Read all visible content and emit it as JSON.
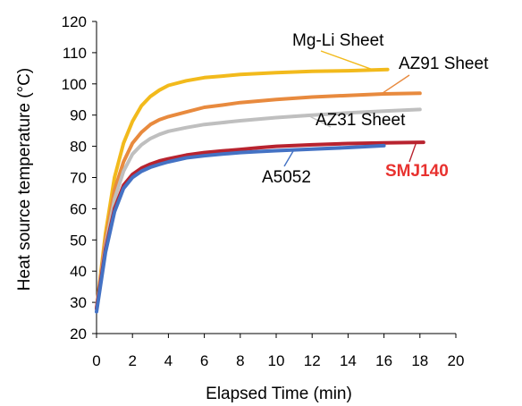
{
  "chart_data": {
    "type": "line",
    "xlabel": "Elapsed Time (min)",
    "ylabel": "Heat source temperature (°C)",
    "xlim": [
      0,
      20
    ],
    "ylim": [
      20,
      120
    ],
    "xticks": [
      0,
      2,
      4,
      6,
      8,
      10,
      12,
      14,
      16,
      18,
      20
    ],
    "yticks": [
      20,
      30,
      40,
      50,
      60,
      70,
      80,
      90,
      100,
      110,
      120
    ],
    "grid": false,
    "legend": "none (series labeled by annotations with leader lines)",
    "series": [
      {
        "name": "Mg-Li Sheet",
        "color": "#F2BA1C",
        "x": [
          0,
          0.5,
          1,
          1.5,
          2,
          2.5,
          3,
          3.5,
          4,
          5,
          6,
          7,
          8,
          9,
          10,
          12,
          14,
          16.2
        ],
        "y": [
          28,
          52,
          70,
          81,
          88,
          93,
          96,
          98,
          99.5,
          101,
          102,
          102.5,
          103,
          103.3,
          103.6,
          104,
          104.2,
          104.6
        ]
      },
      {
        "name": "AZ91 Sheet",
        "color": "#E88A3E",
        "x": [
          0,
          0.5,
          1,
          1.5,
          2,
          2.5,
          3,
          3.5,
          4,
          5,
          6,
          7,
          8,
          9,
          10,
          12,
          14,
          16,
          18
        ],
        "y": [
          28,
          50,
          66,
          75,
          81,
          84.5,
          87,
          88.5,
          89.5,
          91,
          92.5,
          93.2,
          94,
          94.5,
          95,
          95.8,
          96.3,
          96.8,
          97
        ]
      },
      {
        "name": "AZ31 Sheet",
        "color": "#BFBFBF",
        "x": [
          0,
          0.5,
          1,
          1.5,
          2,
          2.5,
          3,
          3.5,
          4,
          5,
          6,
          7,
          8,
          9,
          10,
          12,
          14,
          16,
          18
        ],
        "y": [
          28,
          48,
          63,
          72,
          77.5,
          80.5,
          82.5,
          83.8,
          84.8,
          86,
          87,
          87.6,
          88.2,
          88.7,
          89.2,
          90,
          90.7,
          91.3,
          91.8
        ]
      },
      {
        "name": "SMJ140",
        "color": "#B8232F",
        "x": [
          0,
          0.5,
          1,
          1.5,
          2,
          2.5,
          3,
          3.5,
          4,
          5,
          6,
          7,
          8,
          9,
          10,
          12,
          14,
          16,
          18.2
        ],
        "y": [
          28,
          47,
          60,
          67.5,
          71,
          73,
          74.3,
          75.3,
          76,
          77.2,
          78,
          78.5,
          79,
          79.5,
          80,
          80.5,
          80.9,
          81.1,
          81.3
        ]
      },
      {
        "name": "A5052",
        "color": "#4472C4",
        "x": [
          0,
          0.5,
          1,
          1.5,
          2,
          2.5,
          3,
          3.5,
          4,
          5,
          6,
          7,
          8,
          9,
          10,
          12,
          14,
          16
        ],
        "y": [
          27,
          46,
          59,
          66.5,
          70,
          72,
          73.3,
          74.2,
          75,
          76.3,
          77,
          77.5,
          78,
          78.3,
          78.6,
          79.1,
          79.6,
          80.2
        ]
      }
    ],
    "annotations": [
      {
        "text": "Mg-Li Sheet",
        "color": "#000000",
        "bold": false,
        "arrow_to": [
          15.5,
          104.3
        ]
      },
      {
        "text": "AZ91 Sheet",
        "color": "#000000",
        "bold": false,
        "arrow_to": [
          15.8,
          96.6
        ]
      },
      {
        "text": "AZ31 Sheet",
        "color": "#000000",
        "bold": false,
        "arrow_to": [
          11.8,
          89.8
        ]
      },
      {
        "text": "SMJ140",
        "color": "#E8322F",
        "bold": true,
        "arrow_to": [
          17.8,
          81.3
        ]
      },
      {
        "text": "A5052",
        "color": "#000000",
        "bold": false,
        "arrow_to": [
          11.0,
          79.0
        ]
      }
    ]
  }
}
